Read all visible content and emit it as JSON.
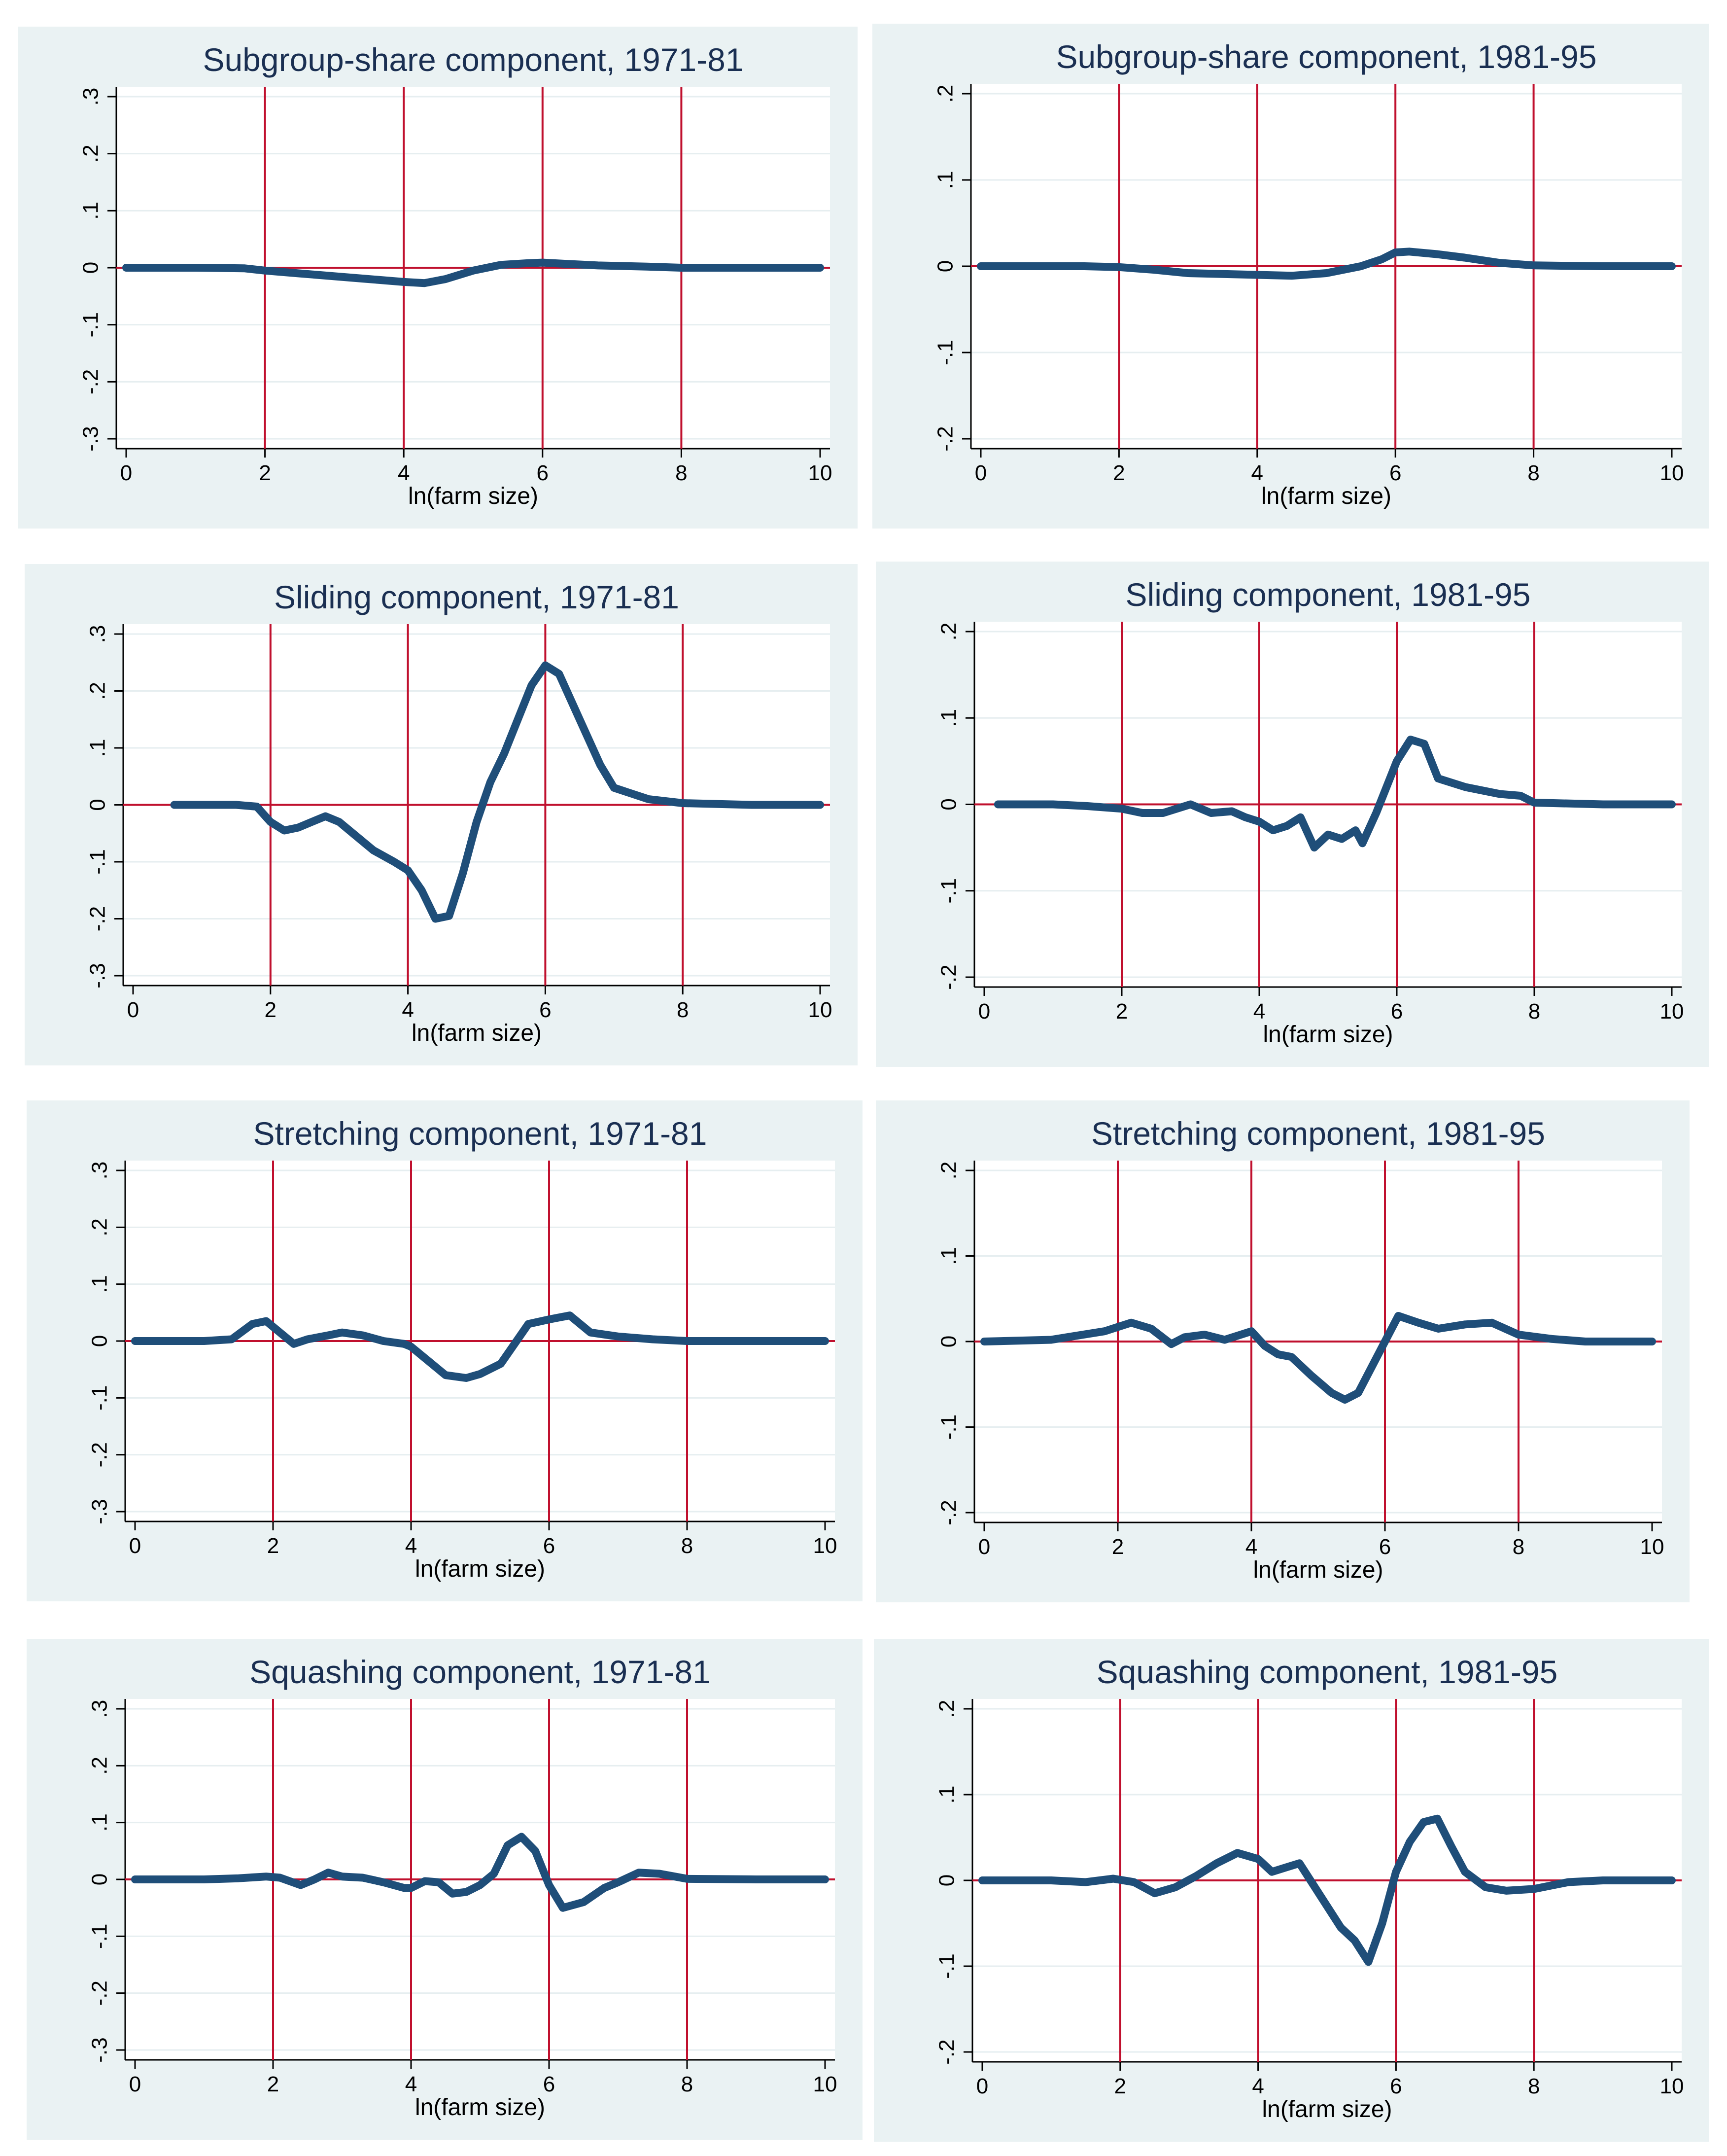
{
  "chart_data": [
    {
      "type": "line",
      "title": "Subgroup-share component, 1971-81",
      "xlabel": "ln(farm size)",
      "ylabel": "",
      "xlim": [
        0,
        10
      ],
      "ylim": [
        -0.3,
        0.3
      ],
      "xticks": [
        "0",
        "2",
        "4",
        "6",
        "8",
        "10"
      ],
      "yticks": [
        "-.3",
        "-.2",
        "-.1",
        "0",
        ".1",
        ".2",
        ".3"
      ],
      "ytick_values": [
        -0.3,
        -0.2,
        -0.1,
        0,
        0.1,
        0.2,
        0.3
      ],
      "vlines": [
        2,
        4,
        6,
        8
      ],
      "series": [
        {
          "name": "component",
          "x": [
            0,
            1.0,
            1.7,
            2.0,
            2.5,
            3.0,
            3.5,
            4.0,
            4.3,
            4.6,
            5.0,
            5.4,
            5.8,
            6.0,
            6.3,
            6.8,
            7.5,
            8.0,
            9.0,
            10.0
          ],
          "y": [
            0,
            0,
            -0.001,
            -0.005,
            -0.01,
            -0.015,
            -0.02,
            -0.025,
            -0.027,
            -0.02,
            -0.005,
            0.005,
            0.008,
            0.009,
            0.007,
            0.004,
            0.002,
            0,
            0,
            0
          ]
        }
      ]
    },
    {
      "type": "line",
      "title": "Subgroup-share component, 1981-95",
      "xlabel": "ln(farm size)",
      "ylabel": "",
      "xlim": [
        0,
        10
      ],
      "ylim": [
        -0.2,
        0.2
      ],
      "xticks": [
        "0",
        "2",
        "4",
        "6",
        "8",
        "10"
      ],
      "yticks": [
        "-.2",
        "-.1",
        "0",
        ".1",
        ".2"
      ],
      "ytick_values": [
        -0.2,
        -0.1,
        0,
        0.1,
        0.2
      ],
      "vlines": [
        2,
        4,
        6,
        8
      ],
      "series": [
        {
          "name": "component",
          "x": [
            0,
            1.5,
            2.0,
            2.5,
            3.0,
            3.5,
            4.0,
            4.5,
            5.0,
            5.5,
            5.8,
            6.0,
            6.2,
            6.6,
            7.0,
            7.5,
            8.0,
            9.0,
            10.0
          ],
          "y": [
            0,
            0,
            -0.001,
            -0.004,
            -0.008,
            -0.009,
            -0.01,
            -0.011,
            -0.008,
            0.0,
            0.008,
            0.016,
            0.017,
            0.014,
            0.01,
            0.004,
            0.001,
            0,
            0
          ]
        }
      ]
    },
    {
      "type": "line",
      "title": "Sliding component, 1971-81",
      "xlabel": "ln(farm size)",
      "ylabel": "",
      "xlim": [
        0,
        10
      ],
      "ylim": [
        -0.3,
        0.3
      ],
      "xticks": [
        "0",
        "2",
        "4",
        "6",
        "8",
        "10"
      ],
      "yticks": [
        "-.3",
        "-.2",
        "-.1",
        "0",
        ".1",
        ".2",
        ".3"
      ],
      "ytick_values": [
        -0.3,
        -0.2,
        -0.1,
        0,
        0.1,
        0.2,
        0.3
      ],
      "vlines": [
        2,
        4,
        6,
        8
      ],
      "series": [
        {
          "name": "component",
          "x": [
            0.6,
            1.0,
            1.5,
            1.8,
            2.0,
            2.2,
            2.4,
            2.6,
            2.8,
            3.0,
            3.2,
            3.5,
            3.8,
            4.0,
            4.2,
            4.4,
            4.6,
            4.8,
            5.0,
            5.2,
            5.4,
            5.6,
            5.8,
            6.0,
            6.2,
            6.5,
            6.8,
            7.0,
            7.5,
            8.0,
            9.0,
            10.0
          ],
          "y": [
            0,
            0,
            0,
            -0.003,
            -0.03,
            -0.045,
            -0.04,
            -0.03,
            -0.02,
            -0.03,
            -0.05,
            -0.08,
            -0.1,
            -0.115,
            -0.15,
            -0.2,
            -0.195,
            -0.12,
            -0.03,
            0.04,
            0.09,
            0.15,
            0.21,
            0.245,
            0.23,
            0.15,
            0.07,
            0.03,
            0.01,
            0.003,
            0,
            0
          ]
        }
      ]
    },
    {
      "type": "line",
      "title": "Sliding component, 1981-95",
      "xlabel": "ln(farm size)",
      "ylabel": "",
      "xlim": [
        0,
        10
      ],
      "ylim": [
        -0.2,
        0.2
      ],
      "xticks": [
        "0",
        "2",
        "4",
        "6",
        "8",
        "10"
      ],
      "yticks": [
        "-.2",
        "-.1",
        "0",
        ".1",
        ".2"
      ],
      "ytick_values": [
        -0.2,
        -0.1,
        0,
        0.1,
        0.2
      ],
      "vlines": [
        2,
        4,
        6,
        8
      ],
      "series": [
        {
          "name": "component",
          "x": [
            0.2,
            1.0,
            1.5,
            2.0,
            2.3,
            2.6,
            3.0,
            3.3,
            3.6,
            3.8,
            4.0,
            4.2,
            4.4,
            4.6,
            4.8,
            5.0,
            5.2,
            5.4,
            5.5,
            5.7,
            5.9,
            6.0,
            6.2,
            6.4,
            6.6,
            7.0,
            7.5,
            7.8,
            8.0,
            9.0,
            10.0
          ],
          "y": [
            0,
            0,
            -0.002,
            -0.005,
            -0.01,
            -0.01,
            0.0,
            -0.01,
            -0.008,
            -0.015,
            -0.02,
            -0.03,
            -0.025,
            -0.015,
            -0.05,
            -0.035,
            -0.04,
            -0.03,
            -0.045,
            -0.01,
            0.03,
            0.05,
            0.075,
            0.07,
            0.03,
            0.02,
            0.012,
            0.01,
            0.002,
            0,
            0
          ]
        }
      ]
    },
    {
      "type": "line",
      "title": "Stretching component, 1971-81",
      "xlabel": "ln(farm size)",
      "ylabel": "",
      "xlim": [
        0,
        10
      ],
      "ylim": [
        -0.3,
        0.3
      ],
      "xticks": [
        "0",
        "2",
        "4",
        "6",
        "8",
        "10"
      ],
      "yticks": [
        "-.3",
        "-.2",
        "-.1",
        "0",
        ".1",
        ".2",
        ".3"
      ],
      "ytick_values": [
        -0.3,
        -0.2,
        -0.1,
        0,
        0.1,
        0.2,
        0.3
      ],
      "vlines": [
        2,
        4,
        6,
        8
      ],
      "series": [
        {
          "name": "component",
          "x": [
            0,
            1.0,
            1.4,
            1.7,
            1.9,
            2.1,
            2.3,
            2.5,
            2.8,
            3.0,
            3.3,
            3.6,
            3.9,
            4.0,
            4.2,
            4.5,
            4.8,
            5.0,
            5.3,
            5.5,
            5.7,
            6.0,
            6.3,
            6.6,
            7.0,
            7.5,
            8.0,
            9.0,
            10.0
          ],
          "y": [
            0,
            0,
            0.003,
            0.03,
            0.035,
            0.015,
            -0.005,
            0.003,
            0.01,
            0.015,
            0.01,
            0.0,
            -0.005,
            -0.01,
            -0.03,
            -0.06,
            -0.065,
            -0.058,
            -0.04,
            -0.005,
            0.03,
            0.038,
            0.045,
            0.015,
            0.008,
            0.003,
            0,
            0,
            0
          ]
        }
      ]
    },
    {
      "type": "line",
      "title": "Stretching component, 1981-95",
      "xlabel": "ln(farm size)",
      "ylabel": "",
      "xlim": [
        0,
        10
      ],
      "ylim": [
        -0.2,
        0.2
      ],
      "xticks": [
        "0",
        "2",
        "4",
        "6",
        "8",
        "10"
      ],
      "yticks": [
        "-.2",
        "-.1",
        "0",
        ".1",
        ".2"
      ],
      "ytick_values": [
        -0.2,
        -0.1,
        0,
        0.1,
        0.2
      ],
      "vlines": [
        2,
        4,
        6,
        8
      ],
      "series": [
        {
          "name": "component",
          "x": [
            0,
            1.0,
            1.8,
            2.2,
            2.5,
            2.8,
            3.0,
            3.3,
            3.6,
            4.0,
            4.2,
            4.4,
            4.6,
            4.9,
            5.2,
            5.4,
            5.6,
            5.8,
            6.0,
            6.2,
            6.5,
            6.8,
            7.2,
            7.6,
            8.0,
            8.5,
            9.0,
            10.0
          ],
          "y": [
            0,
            0.002,
            0.012,
            0.022,
            0.015,
            -0.003,
            0.005,
            0.008,
            0.002,
            0.012,
            -0.005,
            -0.015,
            -0.018,
            -0.04,
            -0.06,
            -0.068,
            -0.06,
            -0.03,
            0.0,
            0.03,
            0.022,
            0.015,
            0.02,
            0.022,
            0.008,
            0.003,
            0,
            0
          ]
        }
      ]
    },
    {
      "type": "line",
      "title": "Squashing component, 1971-81",
      "xlabel": "ln(farm size)",
      "ylabel": "",
      "xlim": [
        0,
        10
      ],
      "ylim": [
        -0.3,
        0.3
      ],
      "xticks": [
        "0",
        "2",
        "4",
        "6",
        "8",
        "10"
      ],
      "yticks": [
        "-.3",
        "-.2",
        "-.1",
        "0",
        ".1",
        ".2",
        ".3"
      ],
      "ytick_values": [
        -0.3,
        -0.2,
        -0.1,
        0,
        0.1,
        0.2,
        0.3
      ],
      "vlines": [
        2,
        4,
        6,
        8
      ],
      "series": [
        {
          "name": "component",
          "x": [
            0,
            1.0,
            1.5,
            1.9,
            2.1,
            2.4,
            2.6,
            2.8,
            3.0,
            3.3,
            3.6,
            3.9,
            4.0,
            4.2,
            4.4,
            4.6,
            4.8,
            5.0,
            5.2,
            5.4,
            5.6,
            5.8,
            6.0,
            6.2,
            6.5,
            6.8,
            7.0,
            7.3,
            7.6,
            8.0,
            9.0,
            10.0
          ],
          "y": [
            0,
            0,
            0.002,
            0.005,
            0.003,
            -0.01,
            0.0,
            0.012,
            0.005,
            0.003,
            -0.005,
            -0.015,
            -0.015,
            -0.003,
            -0.005,
            -0.025,
            -0.022,
            -0.01,
            0.01,
            0.06,
            0.075,
            0.05,
            -0.01,
            -0.05,
            -0.04,
            -0.015,
            -0.005,
            0.012,
            0.01,
            0.001,
            0,
            0
          ]
        }
      ]
    },
    {
      "type": "line",
      "title": "Squashing component, 1981-95",
      "xlabel": "ln(farm size)",
      "ylabel": "",
      "xlim": [
        0,
        10
      ],
      "ylim": [
        -0.2,
        0.2
      ],
      "xticks": [
        "0",
        "2",
        "4",
        "6",
        "8",
        "10"
      ],
      "yticks": [
        "-.2",
        "-.1",
        "0",
        ".1",
        ".2"
      ],
      "ytick_values": [
        -0.2,
        -0.1,
        0,
        0.1,
        0.2
      ],
      "vlines": [
        2,
        4,
        6,
        8
      ],
      "series": [
        {
          "name": "component",
          "x": [
            0,
            1.0,
            1.5,
            1.9,
            2.2,
            2.5,
            2.8,
            3.1,
            3.4,
            3.7,
            4.0,
            4.2,
            4.4,
            4.6,
            4.8,
            5.0,
            5.2,
            5.4,
            5.6,
            5.8,
            6.0,
            6.2,
            6.4,
            6.6,
            6.8,
            7.0,
            7.3,
            7.6,
            8.0,
            8.5,
            9.0,
            10.0
          ],
          "y": [
            0,
            0,
            -0.002,
            0.002,
            -0.002,
            -0.015,
            -0.008,
            0.005,
            0.02,
            0.032,
            0.025,
            0.01,
            0.015,
            0.02,
            -0.005,
            -0.03,
            -0.055,
            -0.07,
            -0.095,
            -0.05,
            0.01,
            0.045,
            0.068,
            0.072,
            0.04,
            0.01,
            -0.008,
            -0.012,
            -0.01,
            -0.002,
            0,
            0
          ]
        }
      ]
    }
  ]
}
